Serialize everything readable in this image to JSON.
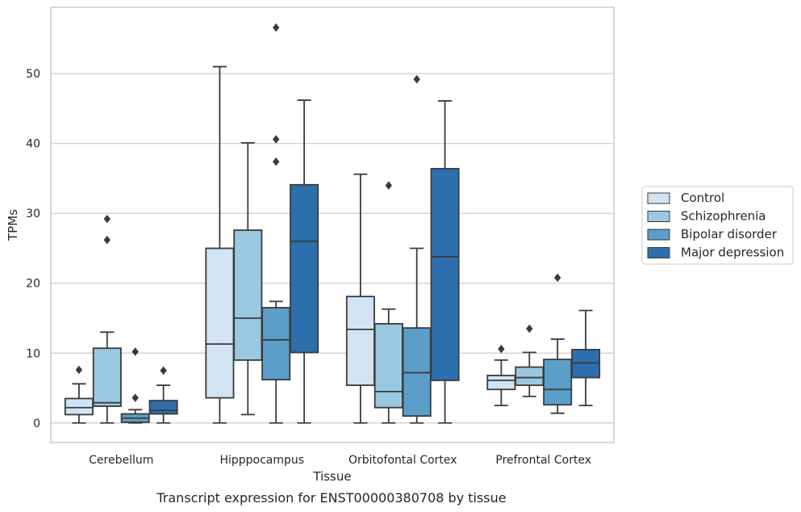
{
  "caption": "Transcript expression for ENST00000380708 by tissue",
  "chart_data": {
    "type": "box",
    "xlabel": "Tissue",
    "ylabel": "TPMs",
    "ylim": [
      -2.8,
      59.5
    ],
    "yticks": [
      0,
      10,
      20,
      30,
      40,
      50
    ],
    "grid": "horizontal",
    "legend_position": "right",
    "categories": [
      "Cerebellum",
      "Hipppocampus",
      "Orbitofontal Cortex",
      "Prefrontal Cortex"
    ],
    "series": [
      {
        "name": "Control",
        "color": "#d2e3f3",
        "boxes": [
          {
            "whislo": 0,
            "q1": 1.2,
            "med": 2.2,
            "q3": 3.5,
            "whishi": 5.6,
            "fliers": [
              7.6
            ]
          },
          {
            "whislo": 0,
            "q1": 3.6,
            "med": 11.3,
            "q3": 25.0,
            "whishi": 51.0,
            "fliers": []
          },
          {
            "whislo": 0,
            "q1": 5.4,
            "med": 13.4,
            "q3": 18.1,
            "whishi": 35.6,
            "fliers": []
          },
          {
            "whislo": 2.5,
            "q1": 4.8,
            "med": 6.1,
            "q3": 6.8,
            "whishi": 9.0,
            "fliers": [
              10.6
            ]
          }
        ]
      },
      {
        "name": "Schizophrenia",
        "color": "#9ac8e0",
        "boxes": [
          {
            "whislo": 0,
            "q1": 2.4,
            "med": 2.9,
            "q3": 10.7,
            "whishi": 13.0,
            "fliers": [
              26.2,
              29.2
            ]
          },
          {
            "whislo": 1.2,
            "q1": 9.0,
            "med": 15.0,
            "q3": 27.6,
            "whishi": 40.1,
            "fliers": []
          },
          {
            "whislo": 0,
            "q1": 2.2,
            "med": 4.5,
            "q3": 14.2,
            "whishi": 16.3,
            "fliers": [
              34.0
            ]
          },
          {
            "whislo": 3.8,
            "q1": 5.4,
            "med": 6.5,
            "q3": 8.0,
            "whishi": 10.1,
            "fliers": [
              13.5
            ]
          }
        ]
      },
      {
        "name": "Bipolar disorder",
        "color": "#5a9ec9",
        "boxes": [
          {
            "whislo": 0,
            "q1": 0.1,
            "med": 0.7,
            "q3": 1.3,
            "whishi": 1.9,
            "fliers": [
              3.6,
              10.2
            ]
          },
          {
            "whislo": 0,
            "q1": 6.2,
            "med": 11.9,
            "q3": 16.5,
            "whishi": 17.4,
            "fliers": [
              37.4,
              40.6,
              56.6
            ]
          },
          {
            "whislo": 0,
            "q1": 1.0,
            "med": 7.2,
            "q3": 13.6,
            "whishi": 25.0,
            "fliers": [
              49.2
            ]
          },
          {
            "whislo": 1.4,
            "q1": 2.6,
            "med": 4.8,
            "q3": 9.1,
            "whishi": 12.0,
            "fliers": [
              20.8
            ]
          }
        ]
      },
      {
        "name": "Major depression",
        "color": "#2d6fad",
        "boxes": [
          {
            "whislo": 0,
            "q1": 1.3,
            "med": 1.8,
            "q3": 3.2,
            "whishi": 5.4,
            "fliers": [
              7.5
            ]
          },
          {
            "whislo": 0,
            "q1": 10.1,
            "med": 26.0,
            "q3": 34.1,
            "whishi": 46.2,
            "fliers": []
          },
          {
            "whislo": 0,
            "q1": 6.1,
            "med": 23.8,
            "q3": 36.4,
            "whishi": 46.1,
            "fliers": []
          },
          {
            "whislo": 2.5,
            "q1": 6.5,
            "med": 8.6,
            "q3": 10.5,
            "whishi": 16.1,
            "fliers": []
          }
        ]
      }
    ]
  }
}
